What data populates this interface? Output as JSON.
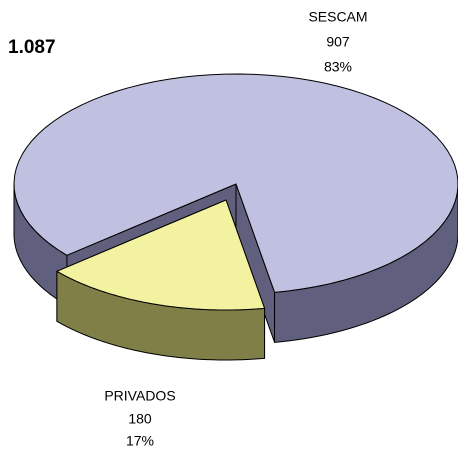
{
  "chart_data": {
    "type": "pie",
    "annotation": "1.087",
    "categories": [
      "SESCAM",
      "PRIVADOS"
    ],
    "values": [
      907,
      180
    ],
    "percent_labels": [
      "83%",
      "17%"
    ],
    "colors": [
      "#c0c0e0",
      "#f2f2a0"
    ],
    "side_colors": [
      "#60607e",
      "#7f7f47"
    ]
  }
}
